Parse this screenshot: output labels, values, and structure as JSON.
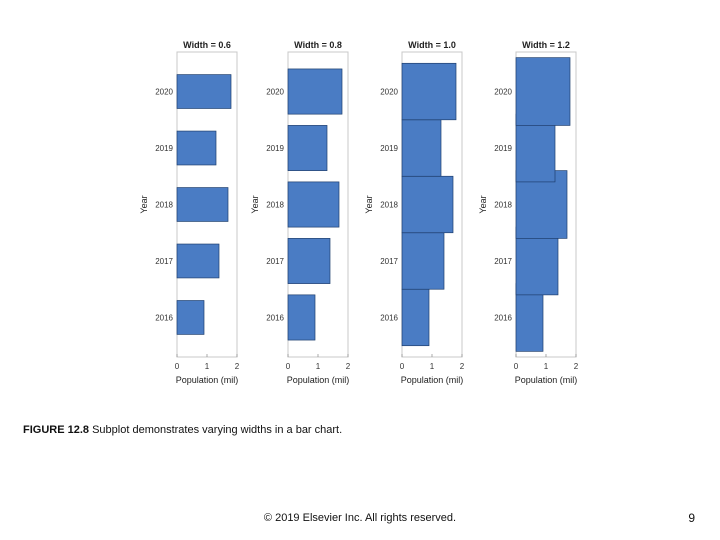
{
  "chart_data": [
    {
      "type": "bar",
      "orientation": "horizontal",
      "title": "Width = 0.6",
      "xlabel": "Population (mil)",
      "ylabel": "Year",
      "categories": [
        "2016",
        "2017",
        "2018",
        "2019",
        "2020"
      ],
      "values": [
        0.9,
        1.4,
        1.7,
        1.3,
        1.8
      ],
      "bar_width": 0.6,
      "xlim": [
        0,
        2
      ],
      "xticks": [
        "0",
        "1",
        "2"
      ],
      "grid": false,
      "color": "#4a7cc4"
    },
    {
      "type": "bar",
      "orientation": "horizontal",
      "title": "Width = 0.8",
      "xlabel": "Population (mil)",
      "ylabel": "Year",
      "categories": [
        "2016",
        "2017",
        "2018",
        "2019",
        "2020"
      ],
      "values": [
        0.9,
        1.4,
        1.7,
        1.3,
        1.8
      ],
      "bar_width": 0.8,
      "xlim": [
        0,
        2
      ],
      "xticks": [
        "0",
        "1",
        "2"
      ],
      "grid": false,
      "color": "#4a7cc4"
    },
    {
      "type": "bar",
      "orientation": "horizontal",
      "title": "Width = 1.0",
      "xlabel": "Population (mil)",
      "ylabel": "Year",
      "categories": [
        "2016",
        "2017",
        "2018",
        "2019",
        "2020"
      ],
      "values": [
        0.9,
        1.4,
        1.7,
        1.3,
        1.8
      ],
      "bar_width": 1.0,
      "xlim": [
        0,
        2
      ],
      "xticks": [
        "0",
        "1",
        "2"
      ],
      "grid": false,
      "color": "#4a7cc4"
    },
    {
      "type": "bar",
      "orientation": "horizontal",
      "title": "Width = 1.2",
      "xlabel": "Population (mil)",
      "ylabel": "Year",
      "categories": [
        "2016",
        "2017",
        "2018",
        "2019",
        "2020"
      ],
      "values": [
        0.9,
        1.4,
        1.7,
        1.3,
        1.8
      ],
      "bar_width": 1.2,
      "xlim": [
        0,
        2
      ],
      "xticks": [
        "0",
        "1",
        "2"
      ],
      "grid": false,
      "color": "#4a7cc4"
    }
  ],
  "caption": {
    "figure_label": "FIGURE 12.8",
    "text": "Subplot demonstrates varying widths in a bar chart."
  },
  "footer": {
    "copyright": "© 2019 Elsevier Inc. All rights reserved.",
    "page_number": "9"
  }
}
